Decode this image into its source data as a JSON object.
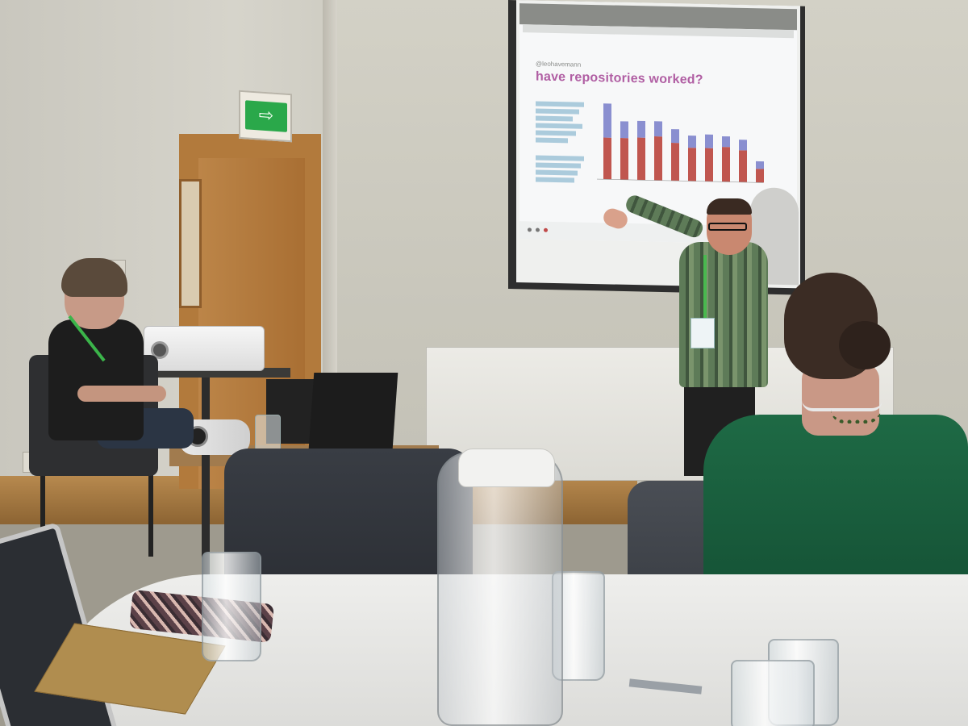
{
  "slide": {
    "handle": "@leohavemann",
    "title": "have repositories worked?",
    "chart": {
      "bars": [
        {
          "top": 0.45,
          "bottom": 0.55
        },
        {
          "top": 0.22,
          "bottom": 0.55
        },
        {
          "top": 0.22,
          "bottom": 0.56
        },
        {
          "top": 0.2,
          "bottom": 0.58
        },
        {
          "top": 0.18,
          "bottom": 0.5
        },
        {
          "top": 0.16,
          "bottom": 0.44
        },
        {
          "top": 0.18,
          "bottom": 0.44
        },
        {
          "top": 0.14,
          "bottom": 0.46
        },
        {
          "top": 0.14,
          "bottom": 0.42
        },
        {
          "top": 0.1,
          "bottom": 0.18
        }
      ]
    }
  },
  "colors": {
    "slide_title": "#b05ea3",
    "bar_top": "#8a8fd0",
    "bar_bottom": "#c0564f",
    "exit_sign": "#2aa84a"
  },
  "exit_sign_glyph": "⇨"
}
